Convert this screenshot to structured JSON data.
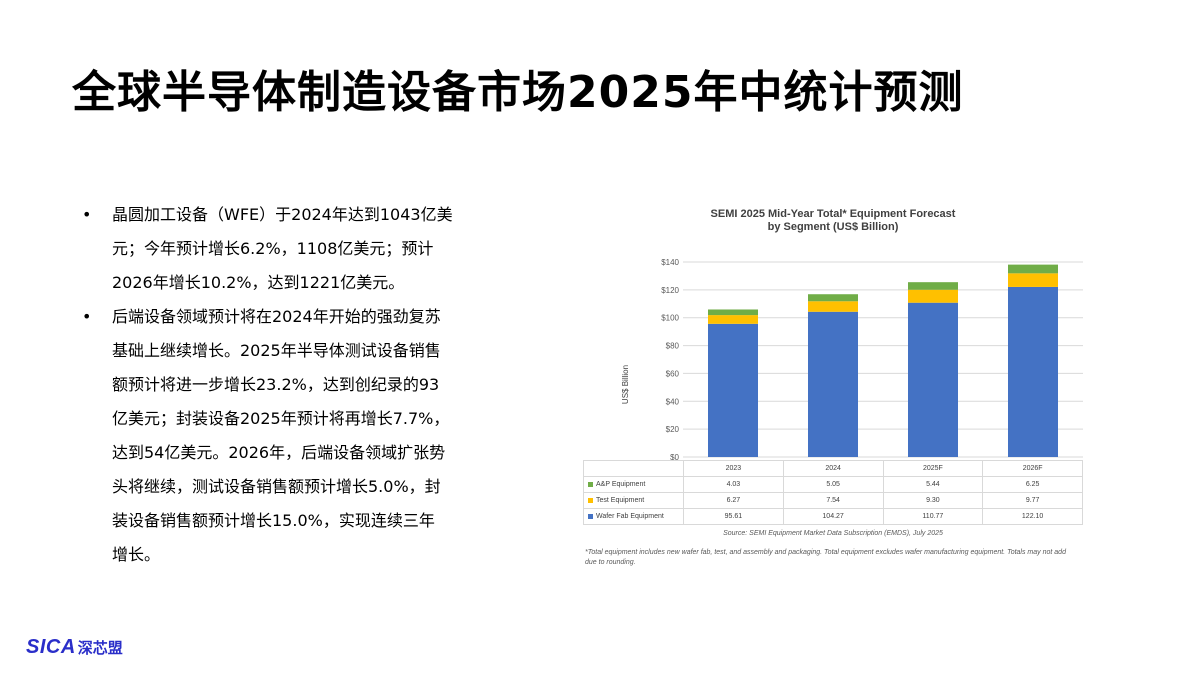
{
  "title": "全球半导体制造设备市场2025年中统计预测",
  "bullets": [
    {
      "marker": "•",
      "lines": [
        "晶圆加工设备（WFE）于2024年达到1043亿美",
        "元；今年预计增长6.2%，1108亿美元；预计",
        "2026年增长10.2%，达到1221亿美元。"
      ]
    },
    {
      "marker": "•",
      "lines": [
        "后端设备领域预计将在2024年开始的强劲复苏",
        "基础上继续增长。2025年半导体测试设备销售",
        "额预计将进一步增长23.2%，达到创纪录的93",
        "亿美元；封装设备2025年预计将再增长7.7%，",
        "达到54亿美元。2026年，后端设备领域扩张势",
        "头将继续，测试设备销售额预计增长5.0%，封",
        "装设备销售额预计增长15.0%，实现连续三年",
        "增长。"
      ]
    }
  ],
  "chart_data": {
    "type": "bar",
    "stacked": true,
    "title_lines": [
      "SEMI 2025 Mid-Year Total* Equipment Forecast",
      "by Segment (US$ Billion)"
    ],
    "ylabel": "US$ Billion",
    "ylim": [
      0,
      140
    ],
    "ytick_step": 20,
    "ytick_prefix": "$",
    "categories": [
      "2023",
      "2024",
      "2025F",
      "2026F"
    ],
    "series": [
      {
        "name": "Wafer Fab Equipment",
        "color": "#4472c4",
        "values": [
          95.61,
          104.27,
          110.77,
          122.1
        ],
        "labels": [
          "95.61",
          "104.27",
          "110.77",
          "122.10"
        ]
      },
      {
        "name": "Test Equipment",
        "color": "#ffc000",
        "values": [
          6.27,
          7.54,
          9.3,
          9.77
        ],
        "labels": [
          "6.27",
          "7.54",
          "9.30",
          "9.77"
        ]
      },
      {
        "name": "A&P Equipment",
        "color": "#70ad47",
        "values": [
          4.03,
          5.05,
          5.44,
          6.25
        ],
        "labels": [
          "4.03",
          "5.05",
          "5.44",
          "6.25"
        ]
      }
    ],
    "grid": true,
    "source": "Source: SEMI Equipment Market Data Subscription (EMDS), July 2025",
    "footnote": "*Total equipment includes new wafer fab, test, and assembly and packaging. Total equipment excludes wafer manufacturing equipment. Totals may not add due to rounding."
  },
  "logo": {
    "en": "SICA",
    "cn": "深芯盟",
    "color": "#2a2ec9"
  }
}
